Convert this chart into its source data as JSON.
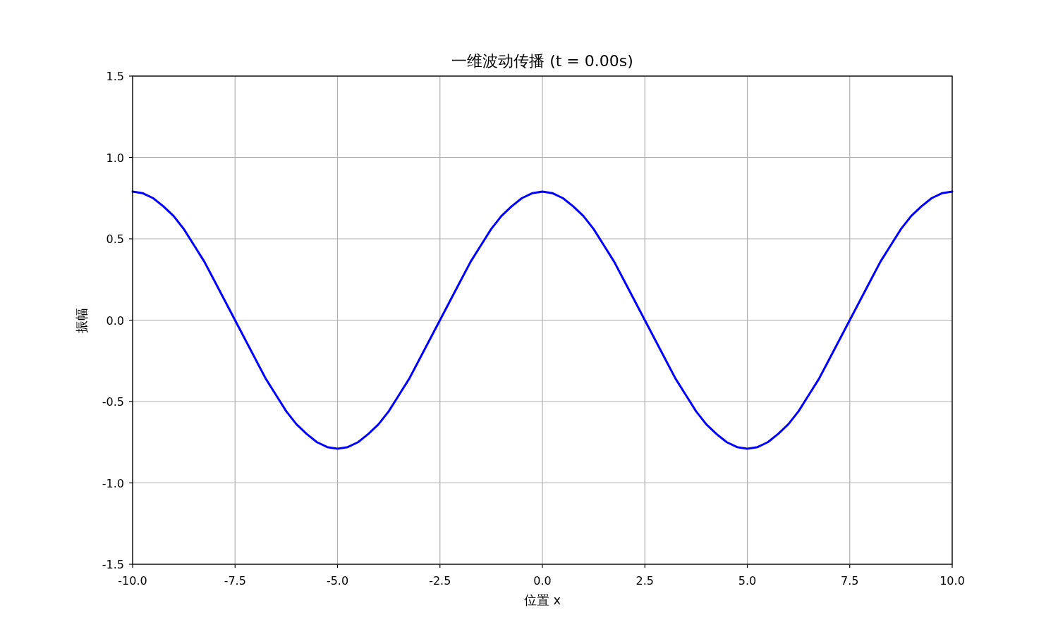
{
  "chart_data": {
    "type": "line",
    "title": "一维波动传播 (t = 0.00s)",
    "xlabel": "位置 x",
    "ylabel": "振幅",
    "x": [
      -10,
      -9.75,
      -9.5,
      -9.25,
      -9,
      -8.75,
      -8.5,
      -8.25,
      -8,
      -7.75,
      -7.5,
      -7.25,
      -7,
      -6.75,
      -6.5,
      -6.25,
      -6,
      -5.75,
      -5.5,
      -5.25,
      -5,
      -4.75,
      -4.5,
      -4.25,
      -4,
      -3.75,
      -3.5,
      -3.25,
      -3,
      -2.75,
      -2.5,
      -2.25,
      -2,
      -1.75,
      -1.5,
      -1.25,
      -1,
      -0.75,
      -0.5,
      -0.25,
      0,
      0.25,
      0.5,
      0.75,
      1,
      1.25,
      1.5,
      1.75,
      2,
      2.25,
      2.5,
      2.75,
      3,
      3.25,
      3.5,
      3.75,
      4,
      4.25,
      4.5,
      4.75,
      5,
      5.25,
      5.5,
      5.75,
      6,
      6.25,
      6.5,
      6.75,
      7,
      7.25,
      7.5,
      7.75,
      8,
      8.25,
      8.5,
      8.75,
      9,
      9.25,
      9.5,
      9.75,
      10
    ],
    "series": [
      {
        "color": "#0000ff",
        "values": [
          0.79,
          0.78,
          0.75,
          0.7,
          0.64,
          0.56,
          0.46,
          0.36,
          0.24,
          0.12,
          0,
          -0.12,
          -0.24,
          -0.36,
          -0.46,
          -0.56,
          -0.64,
          -0.7,
          -0.75,
          -0.78,
          -0.79,
          -0.78,
          -0.75,
          -0.7,
          -0.64,
          -0.56,
          -0.46,
          -0.36,
          -0.24,
          -0.12,
          0,
          0.12,
          0.24,
          0.36,
          0.46,
          0.56,
          0.64,
          0.7,
          0.75,
          0.78,
          0.79,
          0.78,
          0.75,
          0.7,
          0.64,
          0.56,
          0.46,
          0.36,
          0.24,
          0.12,
          0,
          -0.12,
          -0.24,
          -0.36,
          -0.46,
          -0.56,
          -0.64,
          -0.7,
          -0.75,
          -0.78,
          -0.79,
          -0.78,
          -0.75,
          -0.7,
          -0.64,
          -0.56,
          -0.46,
          -0.36,
          -0.24,
          -0.12,
          0,
          0.12,
          0.24,
          0.36,
          0.46,
          0.56,
          0.64,
          0.7,
          0.75,
          0.78,
          0.79
        ]
      }
    ],
    "xlim": [
      -10,
      10
    ],
    "ylim": [
      -1.5,
      1.5
    ],
    "xticks": [
      {
        "value": -10,
        "label": "-10.0"
      },
      {
        "value": -7.5,
        "label": "-7.5"
      },
      {
        "value": -5,
        "label": "-5.0"
      },
      {
        "value": -2.5,
        "label": "-2.5"
      },
      {
        "value": 0,
        "label": "0.0"
      },
      {
        "value": 2.5,
        "label": "2.5"
      },
      {
        "value": 5,
        "label": "5.0"
      },
      {
        "value": 7.5,
        "label": "7.5"
      },
      {
        "value": 10,
        "label": "10.0"
      }
    ],
    "yticks": [
      {
        "value": -1.5,
        "label": "-1.5"
      },
      {
        "value": -1,
        "label": "-1.0"
      },
      {
        "value": -0.5,
        "label": "-0.5"
      },
      {
        "value": 0,
        "label": "0.0"
      },
      {
        "value": 0.5,
        "label": "0.5"
      },
      {
        "value": 1,
        "label": "1.0"
      },
      {
        "value": 1.5,
        "label": "1.5"
      }
    ],
    "grid": true
  }
}
